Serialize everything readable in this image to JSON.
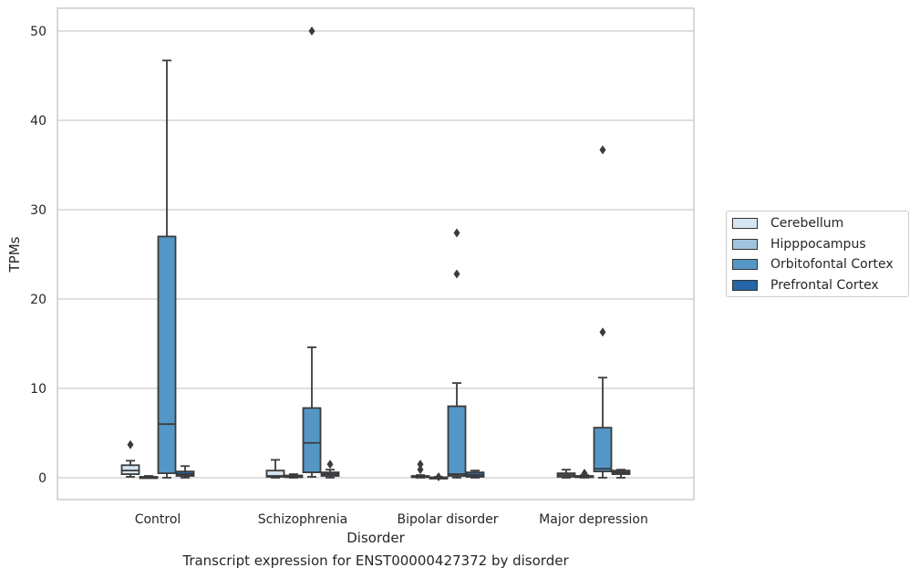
{
  "chart_data": {
    "type": "box",
    "xlabel": "Disorder",
    "ylabel": "TPMs",
    "caption": "Transcript expression for ENST00000427372 by disorder",
    "categories": [
      "Control",
      "Schizophrenia",
      "Bipolar disorder",
      "Major depression"
    ],
    "yticks": [
      0,
      10,
      20,
      30,
      40,
      50
    ],
    "ylim": [
      -2.5,
      52.5
    ],
    "grid": "horizontal",
    "legend_placement": "right",
    "series": [
      {
        "name": "Cerebellum",
        "color": "#d6e5f3",
        "boxes": [
          {
            "whislo": 0.1,
            "q1": 0.4,
            "med": 0.8,
            "q3": 1.4,
            "whishi": 1.9,
            "fliers": [
              3.7
            ]
          },
          {
            "whislo": 0.0,
            "q1": 0.1,
            "med": 0.2,
            "q3": 0.8,
            "whishi": 2.0,
            "fliers": []
          },
          {
            "whislo": 0.0,
            "q1": 0.05,
            "med": 0.1,
            "q3": 0.2,
            "whishi": 0.3,
            "fliers": [
              0.9,
              1.5
            ]
          },
          {
            "whislo": 0.0,
            "q1": 0.1,
            "med": 0.3,
            "q3": 0.5,
            "whishi": 0.9,
            "fliers": []
          }
        ]
      },
      {
        "name": "Hipppocampus",
        "color": "#a0c4dd",
        "boxes": [
          {
            "whislo": 0.0,
            "q1": 0.0,
            "med": 0.05,
            "q3": 0.1,
            "whishi": 0.2,
            "fliers": []
          },
          {
            "whislo": 0.0,
            "q1": 0.05,
            "med": 0.1,
            "q3": 0.25,
            "whishi": 0.4,
            "fliers": []
          },
          {
            "whislo": 0.0,
            "q1": 0.0,
            "med": 0.0,
            "q3": 0.05,
            "whishi": 0.1,
            "fliers": [
              0.1
            ]
          },
          {
            "whislo": 0.0,
            "q1": 0.05,
            "med": 0.1,
            "q3": 0.2,
            "whishi": 0.3,
            "fliers": [
              0.5
            ]
          }
        ]
      },
      {
        "name": "Orbitofontal Cortex",
        "color": "#5497c6",
        "boxes": [
          {
            "whislo": 0.0,
            "q1": 0.5,
            "med": 6.0,
            "q3": 27.0,
            "whishi": 46.7,
            "fliers": []
          },
          {
            "whislo": 0.1,
            "q1": 0.6,
            "med": 3.9,
            "q3": 7.8,
            "whishi": 14.6,
            "fliers": [
              50.0
            ]
          },
          {
            "whislo": 0.0,
            "q1": 0.2,
            "med": 0.4,
            "q3": 8.0,
            "whishi": 10.6,
            "fliers": [
              22.8,
              27.4
            ]
          },
          {
            "whislo": 0.0,
            "q1": 0.7,
            "med": 1.0,
            "q3": 5.6,
            "whishi": 11.2,
            "fliers": [
              16.3,
              36.7
            ]
          }
        ]
      },
      {
        "name": "Prefrontal Cortex",
        "color": "#2466a8",
        "boxes": [
          {
            "whislo": 0.0,
            "q1": 0.2,
            "med": 0.4,
            "q3": 0.7,
            "whishi": 1.3,
            "fliers": []
          },
          {
            "whislo": 0.0,
            "q1": 0.2,
            "med": 0.4,
            "q3": 0.6,
            "whishi": 0.9,
            "fliers": [
              1.5
            ]
          },
          {
            "whislo": 0.0,
            "q1": 0.1,
            "med": 0.3,
            "q3": 0.6,
            "whishi": 0.8,
            "fliers": []
          },
          {
            "whislo": 0.0,
            "q1": 0.4,
            "med": 0.6,
            "q3": 0.8,
            "whishi": 0.9,
            "fliers": []
          }
        ]
      }
    ]
  }
}
